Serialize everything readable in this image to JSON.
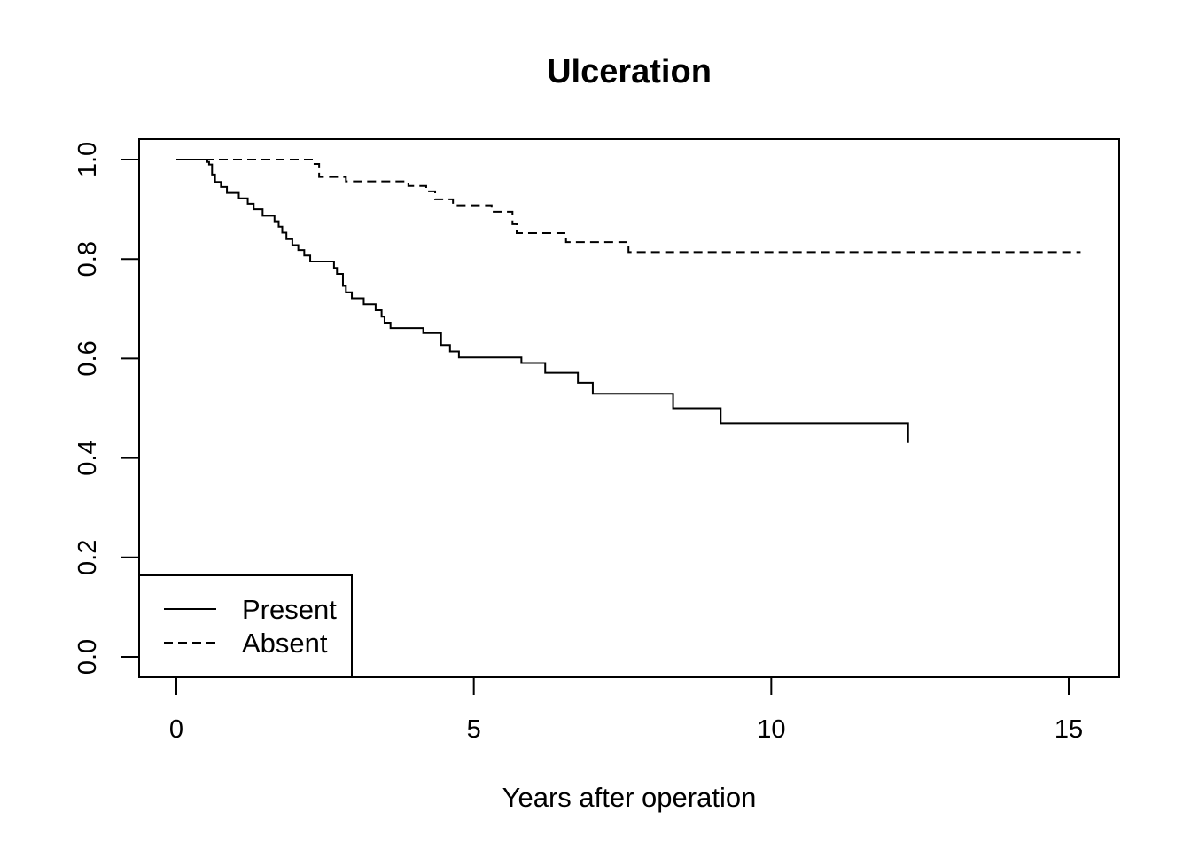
{
  "chart_data": {
    "type": "line",
    "title": "Ulceration",
    "xlabel": "Years after operation",
    "ylabel": "",
    "xlim": [
      0,
      15.2
    ],
    "ylim": [
      0,
      1.0
    ],
    "x_ticks": [
      0,
      5,
      10,
      15
    ],
    "y_ticks": [
      0.0,
      0.2,
      0.4,
      0.6,
      0.8,
      1.0
    ],
    "x_tick_labels": [
      "0",
      "5",
      "10",
      "15"
    ],
    "y_tick_labels": [
      "0.0",
      "0.2",
      "0.4",
      "0.6",
      "0.8",
      "1.0"
    ],
    "grid": false,
    "legend_position": "bottom-left",
    "series": [
      {
        "name": "Present",
        "line_style": "solid",
        "step": true,
        "x": [
          0,
          0.52,
          0.55,
          0.6,
          0.65,
          0.75,
          0.85,
          1.05,
          1.2,
          1.3,
          1.45,
          1.65,
          1.72,
          1.78,
          1.85,
          1.95,
          2.05,
          2.15,
          2.25,
          2.65,
          2.7,
          2.8,
          2.85,
          2.95,
          3.15,
          3.35,
          3.45,
          3.5,
          3.6,
          4.15,
          4.45,
          4.6,
          4.75,
          5.8,
          6.2,
          6.75,
          7.0,
          8.35,
          9.15,
          12.3
        ],
        "y": [
          1.0,
          0.995,
          0.99,
          0.97,
          0.955,
          0.945,
          0.933,
          0.922,
          0.911,
          0.9,
          0.887,
          0.876,
          0.865,
          0.853,
          0.84,
          0.828,
          0.818,
          0.807,
          0.795,
          0.782,
          0.77,
          0.746,
          0.733,
          0.721,
          0.709,
          0.697,
          0.684,
          0.672,
          0.661,
          0.651,
          0.627,
          0.614,
          0.602,
          0.591,
          0.571,
          0.551,
          0.529,
          0.5,
          0.47,
          0.43
        ]
      },
      {
        "name": "Absent",
        "line_style": "dashed",
        "step": true,
        "x": [
          0,
          2.3,
          2.4,
          2.85,
          3.9,
          4.2,
          4.35,
          4.65,
          5.3,
          5.65,
          5.72,
          6.55,
          7.6,
          15.2
        ],
        "y": [
          1.0,
          0.991,
          0.965,
          0.956,
          0.947,
          0.936,
          0.92,
          0.908,
          0.895,
          0.87,
          0.852,
          0.834,
          0.814,
          0.814
        ]
      }
    ]
  }
}
